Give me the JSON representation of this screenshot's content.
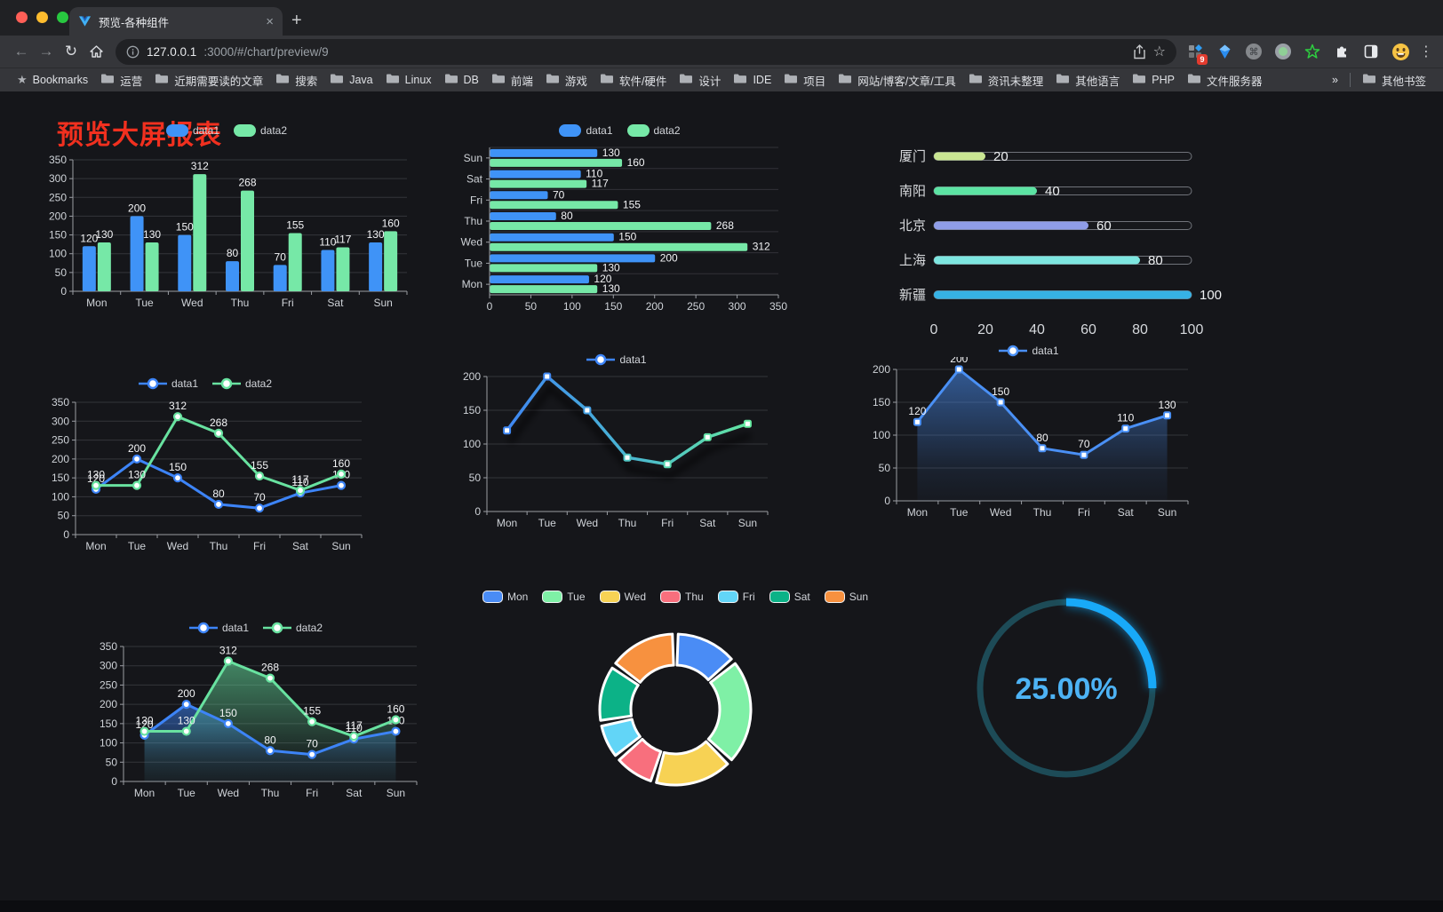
{
  "browser": {
    "traffic_lights": [
      "#ff5f57",
      "#febc2e",
      "#28c840"
    ],
    "tab": {
      "title": "预览-各种组件",
      "close": "×",
      "new_tab": "+"
    },
    "url": {
      "host": "127.0.0.1",
      "rest": ":3000/#/chart/preview/9"
    },
    "extensions": {
      "badge": "9"
    },
    "bookmarks": {
      "label": "Bookmarks",
      "items": [
        "运营",
        "近期需要读的文章",
        "搜索",
        "Java",
        "Linux",
        "DB",
        "前端",
        "游戏",
        "软件/硬件",
        "设计",
        "IDE",
        "项目",
        "网站/博客/文章/工具",
        "资讯未整理",
        "其他语言",
        "PHP",
        "文件服务器"
      ],
      "overflow": "»",
      "other": "其他书签"
    }
  },
  "page": {
    "title": "预览大屏报表",
    "title_color": "#f1301f"
  },
  "chart_data": [
    {
      "id": "c1",
      "type": "bar",
      "categories": [
        "Mon",
        "Tue",
        "Wed",
        "Thu",
        "Fri",
        "Sat",
        "Sun"
      ],
      "series": [
        {
          "name": "data1",
          "color": "#3f93f7",
          "values": [
            120,
            200,
            150,
            80,
            70,
            110,
            130
          ]
        },
        {
          "name": "data2",
          "color": "#76e8a7",
          "values": [
            130,
            130,
            312,
            268,
            155,
            117,
            160
          ]
        }
      ],
      "yticks": [
        0,
        50,
        100,
        150,
        200,
        250,
        300,
        350
      ],
      "labels": true,
      "legend": "pill"
    },
    {
      "id": "c2",
      "type": "hbar",
      "categories_top_to_bottom": [
        "Sun",
        "Sat",
        "Fri",
        "Thu",
        "Wed",
        "Tue",
        "Mon"
      ],
      "series": [
        {
          "name": "data1",
          "color": "#3f93f7",
          "values": [
            120,
            200,
            150,
            80,
            70,
            110,
            130
          ]
        },
        {
          "name": "data2",
          "color": "#76e8a7",
          "values": [
            130,
            130,
            312,
            268,
            155,
            117,
            160
          ]
        }
      ],
      "xticks": [
        0,
        50,
        100,
        150,
        200,
        250,
        300,
        350
      ],
      "labels": true,
      "legend": "pill"
    },
    {
      "id": "c3",
      "type": "progress",
      "rows": [
        {
          "label": "厦门",
          "value": 20,
          "color": "#c9e692"
        },
        {
          "label": "南阳",
          "value": 40,
          "color": "#5ce3a3"
        },
        {
          "label": "北京",
          "value": 60,
          "color": "#8f9de8"
        },
        {
          "label": "上海",
          "value": 80,
          "color": "#7de6e0"
        },
        {
          "label": "新疆",
          "value": 100,
          "color": "#36b2e5"
        }
      ],
      "axis_ticks": [
        0,
        20,
        40,
        60,
        80,
        100
      ],
      "max": 100
    },
    {
      "id": "c4",
      "type": "line",
      "categories": [
        "Mon",
        "Tue",
        "Wed",
        "Thu",
        "Fri",
        "Sat",
        "Sun"
      ],
      "series": [
        {
          "name": "data1",
          "color": "#3d84f7",
          "values": [
            120,
            200,
            150,
            80,
            70,
            110,
            130
          ]
        },
        {
          "name": "data2",
          "color": "#68e2a0",
          "values": [
            130,
            130,
            312,
            268,
            155,
            117,
            160
          ]
        }
      ],
      "yticks": [
        0,
        50,
        100,
        150,
        200,
        250,
        300,
        350
      ],
      "labels": true,
      "legend": "linecirc",
      "marker": "circle"
    },
    {
      "id": "c5",
      "type": "line-gradient",
      "categories": [
        "Mon",
        "Tue",
        "Wed",
        "Thu",
        "Fri",
        "Sat",
        "Sun"
      ],
      "series": [
        {
          "name": "data1",
          "color": "#3d84f7",
          "values": [
            120,
            200,
            150,
            80,
            70,
            110,
            130
          ]
        }
      ],
      "gradient": [
        "#3f87f2",
        "#49b5d2",
        "#63e6a2"
      ],
      "point_colors": [
        "#3f87f2",
        "#3f87f2",
        "#44a0e3",
        "#4fc4c2",
        "#58d6b0",
        "#60e0a6",
        "#67eba2"
      ],
      "yticks": [
        0,
        50,
        100,
        150,
        200
      ],
      "labels": false,
      "legend": "linecirc",
      "marker": "rect",
      "shadow": true
    },
    {
      "id": "c6",
      "type": "line-area",
      "categories": [
        "Mon",
        "Tue",
        "Wed",
        "Thu",
        "Fri",
        "Sat",
        "Sun"
      ],
      "series": [
        {
          "name": "data1",
          "color": "#4a90f5",
          "values": [
            120,
            200,
            150,
            80,
            70,
            110,
            130
          ]
        }
      ],
      "yticks": [
        0,
        50,
        100,
        150,
        200
      ],
      "labels": true,
      "legend": "linecirc",
      "marker": "rect"
    },
    {
      "id": "c7",
      "type": "line-area",
      "categories": [
        "Mon",
        "Tue",
        "Wed",
        "Thu",
        "Fri",
        "Sat",
        "Sun"
      ],
      "series": [
        {
          "name": "data1",
          "color": "#3d84f7",
          "values": [
            120,
            200,
            150,
            80,
            70,
            110,
            130
          ]
        },
        {
          "name": "data2",
          "color": "#68e2a0",
          "values": [
            130,
            130,
            312,
            268,
            155,
            117,
            160
          ]
        }
      ],
      "yticks": [
        0,
        50,
        100,
        150,
        200,
        250,
        300,
        350
      ],
      "labels": true,
      "legend": "linecirc",
      "marker": "circle"
    },
    {
      "id": "c8",
      "type": "donut",
      "legend_items": [
        {
          "label": "Mon",
          "color": "#4a8cf5"
        },
        {
          "label": "Tue",
          "color": "#7ff0a6"
        },
        {
          "label": "Wed",
          "color": "#f7d254"
        },
        {
          "label": "Thu",
          "color": "#f86f7d"
        },
        {
          "label": "Fri",
          "color": "#62d5f7"
        },
        {
          "label": "Sat",
          "color": "#0cb287"
        },
        {
          "label": "Sun",
          "color": "#f7913f"
        }
      ],
      "values": [
        120,
        200,
        150,
        80,
        70,
        110,
        130
      ],
      "legend": "pillb"
    },
    {
      "id": "c9",
      "type": "gauge",
      "value_text": "25.00%",
      "percent": 25,
      "arc_color": "#18a9f8",
      "track_color": "#1d4b57",
      "text_color": "#4db3f5"
    }
  ]
}
